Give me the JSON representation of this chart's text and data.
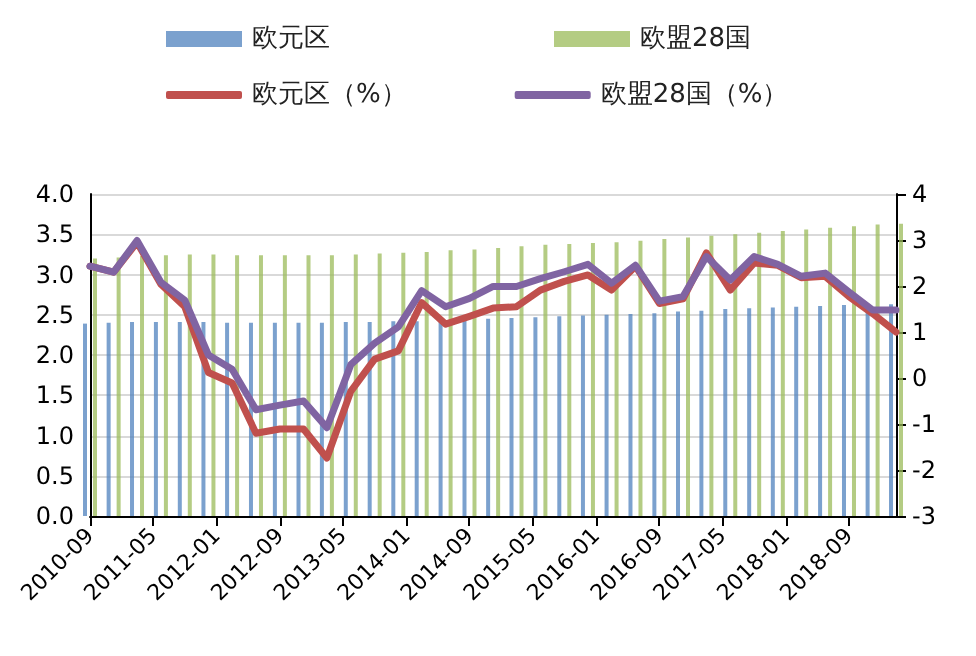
{
  "chart_data": {
    "type": "bar",
    "x": [
      "2010-09",
      "2010-12",
      "2011-03",
      "2011-06",
      "2011-09",
      "2011-12",
      "2012-03",
      "2012-06",
      "2012-09",
      "2012-12",
      "2013-03",
      "2013-06",
      "2013-09",
      "2013-12",
      "2014-03",
      "2014-06",
      "2014-09",
      "2014-12",
      "2015-03",
      "2015-06",
      "2015-09",
      "2015-12",
      "2016-03",
      "2016-06",
      "2016-09",
      "2016-12",
      "2017-03",
      "2017-06",
      "2017-09",
      "2017-12",
      "2018-03",
      "2018-06",
      "2018-09",
      "2018-12",
      "2019-03"
    ],
    "series": [
      {
        "name": "欧元区",
        "color": "#4f81bd",
        "values": [
          2.39,
          2.4,
          2.41,
          2.41,
          2.41,
          2.41,
          2.4,
          2.4,
          2.4,
          2.4,
          2.4,
          2.41,
          2.41,
          2.42,
          2.42,
          2.43,
          2.44,
          2.45,
          2.46,
          2.47,
          2.48,
          2.49,
          2.5,
          2.51,
          2.52,
          2.54,
          2.55,
          2.57,
          2.58,
          2.59,
          2.6,
          2.61,
          2.62,
          2.62,
          2.63
        ]
      },
      {
        "name": "欧盟28国",
        "color": "#9bbb59",
        "values": [
          3.2,
          3.21,
          3.23,
          3.24,
          3.25,
          3.25,
          3.24,
          3.24,
          3.24,
          3.24,
          3.24,
          3.25,
          3.26,
          3.27,
          3.28,
          3.3,
          3.31,
          3.33,
          3.35,
          3.37,
          3.38,
          3.39,
          3.4,
          3.42,
          3.44,
          3.46,
          3.48,
          3.5,
          3.52,
          3.54,
          3.56,
          3.58,
          3.6,
          3.62,
          3.63
        ]
      },
      {
        "name": "欧元区（%）",
        "type": "line",
        "axis": "y2",
        "color": "#c0504d",
        "values": [
          2.43,
          2.3,
          2.95,
          2.04,
          1.55,
          0.12,
          -0.11,
          -1.2,
          -1.11,
          -1.11,
          -1.74,
          -0.29,
          0.41,
          0.59,
          1.64,
          1.17,
          1.34,
          1.52,
          1.55,
          1.91,
          2.1,
          2.24,
          1.91,
          2.43,
          1.62,
          1.72,
          2.72,
          1.91,
          2.5,
          2.45,
          2.18,
          2.21,
          1.77,
          1.4,
          1.0
        ]
      },
      {
        "name": "欧盟28国（%）",
        "type": "line",
        "axis": "y2",
        "color": "#8064a2",
        "values": [
          2.43,
          2.3,
          2.99,
          2.08,
          1.69,
          0.5,
          0.19,
          -0.69,
          -0.59,
          -0.5,
          -1.08,
          0.29,
          0.76,
          1.11,
          1.9,
          1.55,
          1.73,
          1.99,
          1.99,
          2.16,
          2.31,
          2.47,
          2.06,
          2.45,
          1.67,
          1.77,
          2.64,
          2.13,
          2.64,
          2.47,
          2.21,
          2.28,
          1.87,
          1.48,
          1.48
        ]
      }
    ],
    "xlim": [
      "2010-09",
      "2019-03"
    ],
    "xticks": [
      "2010-09",
      "2011-05",
      "2012-01",
      "2012-09",
      "2013-05",
      "2014-01",
      "2014-09",
      "2015-05",
      "2016-01",
      "2016-09",
      "2017-05",
      "2018-01",
      "2018-09"
    ],
    "ylim": [
      0,
      4
    ],
    "yticks": [
      {
        "value": 0,
        "label": "0.0"
      },
      {
        "value": 0.5,
        "label": "0.5"
      },
      {
        "value": 1,
        "label": "1.0"
      },
      {
        "value": 1.5,
        "label": "1.5"
      },
      {
        "value": 2,
        "label": "2.0"
      },
      {
        "value": 2.5,
        "label": "2.5"
      },
      {
        "value": 3,
        "label": "3.0"
      },
      {
        "value": 3.5,
        "label": "3.5"
      },
      {
        "value": 4,
        "label": "4.0"
      }
    ],
    "y2lim": [
      -3,
      4
    ],
    "y2ticks": [
      -3,
      -2,
      -1,
      0,
      1,
      2,
      3,
      4
    ],
    "grid": "y",
    "legend": "top",
    "marker": "none"
  }
}
